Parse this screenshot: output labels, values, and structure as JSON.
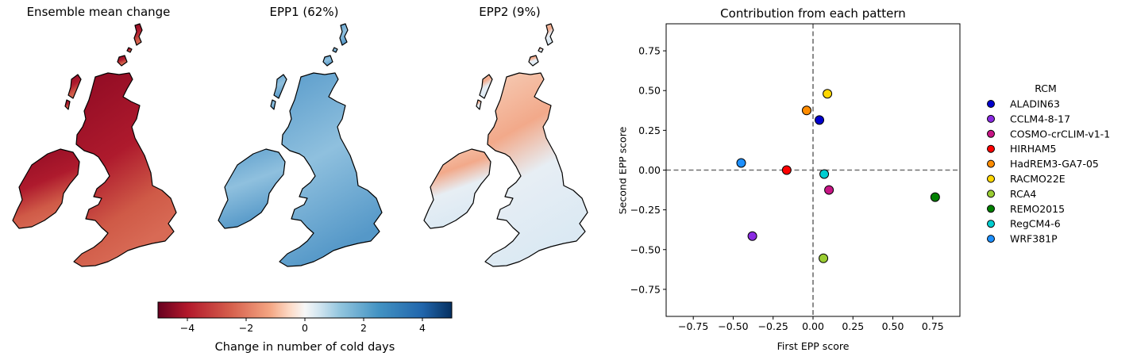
{
  "maps": {
    "titles": [
      "Ensemble mean change",
      "EPP1 (62%)",
      "EPP2 (9%)"
    ],
    "colorbar": {
      "label": "Change in number of cold days",
      "ticks": [
        -4,
        -2,
        0,
        2,
        4
      ],
      "range": [
        -5,
        5
      ],
      "colormap": "RdBu"
    }
  },
  "chart_data": {
    "type": "scatter",
    "title": "Contribution from each pattern",
    "xlabel": "First EPP score",
    "ylabel": "Second EPP score",
    "xlim": [
      -0.92,
      0.92
    ],
    "ylim": [
      -0.92,
      0.92
    ],
    "xticks": [
      -0.75,
      -0.5,
      -0.25,
      0.0,
      0.25,
      0.5,
      0.75
    ],
    "yticks": [
      -0.75,
      -0.5,
      -0.25,
      0.0,
      0.25,
      0.5,
      0.75
    ],
    "reference_lines": {
      "x": 0,
      "y": 0,
      "style": "dashed"
    },
    "legend": {
      "title": "RCM",
      "placement": "right-outside"
    },
    "series": [
      {
        "name": "ALADIN63",
        "color": "#0000cc",
        "x": 0.04,
        "y": 0.315
      },
      {
        "name": "CCLM4-8-17",
        "color": "#8a2be2",
        "x": -0.38,
        "y": -0.415
      },
      {
        "name": "COSMO-crCLIM-v1-1",
        "color": "#c71585",
        "x": 0.1,
        "y": -0.125
      },
      {
        "name": "HIRHAM5",
        "color": "#ff0000",
        "x": -0.165,
        "y": 0.0
      },
      {
        "name": "HadREM3-GA7-05",
        "color": "#ff8c00",
        "x": -0.04,
        "y": 0.375
      },
      {
        "name": "RACMO22E",
        "color": "#ffd700",
        "x": 0.09,
        "y": 0.48
      },
      {
        "name": "RCA4",
        "color": "#9acd32",
        "x": 0.065,
        "y": -0.555
      },
      {
        "name": "REMO2015",
        "color": "#008000",
        "x": 0.765,
        "y": -0.17
      },
      {
        "name": "RegCM4-6",
        "color": "#00ced1",
        "x": 0.07,
        "y": -0.025
      },
      {
        "name": "WRF381P",
        "color": "#1e90ff",
        "x": -0.45,
        "y": 0.045
      }
    ]
  }
}
